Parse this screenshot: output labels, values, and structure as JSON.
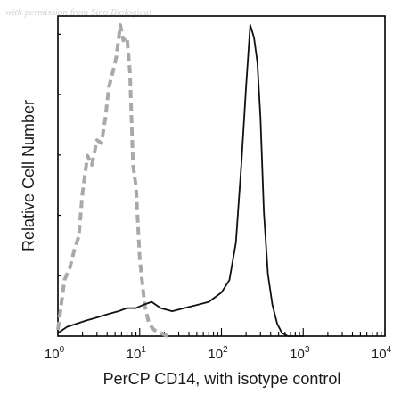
{
  "watermark": "with permission from Sino Biological",
  "chart_data": {
    "type": "line",
    "subtype": "flow cytometry histogram",
    "xlabel": "PerCP CD14, with isotype control",
    "ylabel": "Relative Cell Number",
    "x_scale": "log",
    "xlim": [
      1,
      10000
    ],
    "ylim": [
      0,
      100
    ],
    "x_ticks": [
      {
        "base": "10",
        "exp": "0"
      },
      {
        "base": "10",
        "exp": "1"
      },
      {
        "base": "10",
        "exp": "2"
      },
      {
        "base": "10",
        "exp": "3"
      },
      {
        "base": "10",
        "exp": "4"
      }
    ],
    "grid": false,
    "series": [
      {
        "role": "isotype control",
        "style": "dashed",
        "color": "#a9a9a9",
        "x": [
          1.0,
          1.2,
          1.4,
          1.6,
          1.8,
          2.0,
          2.3,
          2.6,
          3.0,
          3.4,
          3.8,
          4.2,
          4.7,
          5.2,
          5.8,
          6.3,
          7.0,
          7.6,
          8.3,
          9.0,
          10.0,
          11.5,
          13.0,
          15.0,
          18.0,
          22.0
        ],
        "y": [
          2,
          18,
          22,
          28,
          32,
          46,
          58,
          55,
          63,
          62,
          70,
          80,
          85,
          90,
          100,
          95,
          96,
          85,
          55,
          48,
          25,
          10,
          4,
          2,
          1,
          0
        ]
      },
      {
        "role": "PerCP CD14",
        "style": "solid",
        "color": "#111111",
        "x": [
          1.0,
          1.3,
          1.7,
          2.2,
          3.0,
          4.0,
          5.5,
          7.0,
          9.0,
          11.0,
          14.0,
          18.0,
          25.0,
          35.0,
          50.0,
          70.0,
          100.0,
          125.0,
          150.0,
          175.0,
          200.0,
          225.0,
          250.0,
          275.0,
          300.0,
          330.0,
          370.0,
          420.0,
          480.0,
          550.0,
          650.0,
          800.0,
          1000.0
        ],
        "y": [
          1,
          3,
          4,
          5,
          6,
          7,
          8,
          9,
          9,
          10,
          11,
          9,
          8,
          9,
          10,
          11,
          14,
          18,
          30,
          55,
          80,
          100,
          96,
          88,
          70,
          40,
          20,
          10,
          4,
          1,
          0,
          0,
          0
        ]
      }
    ]
  }
}
